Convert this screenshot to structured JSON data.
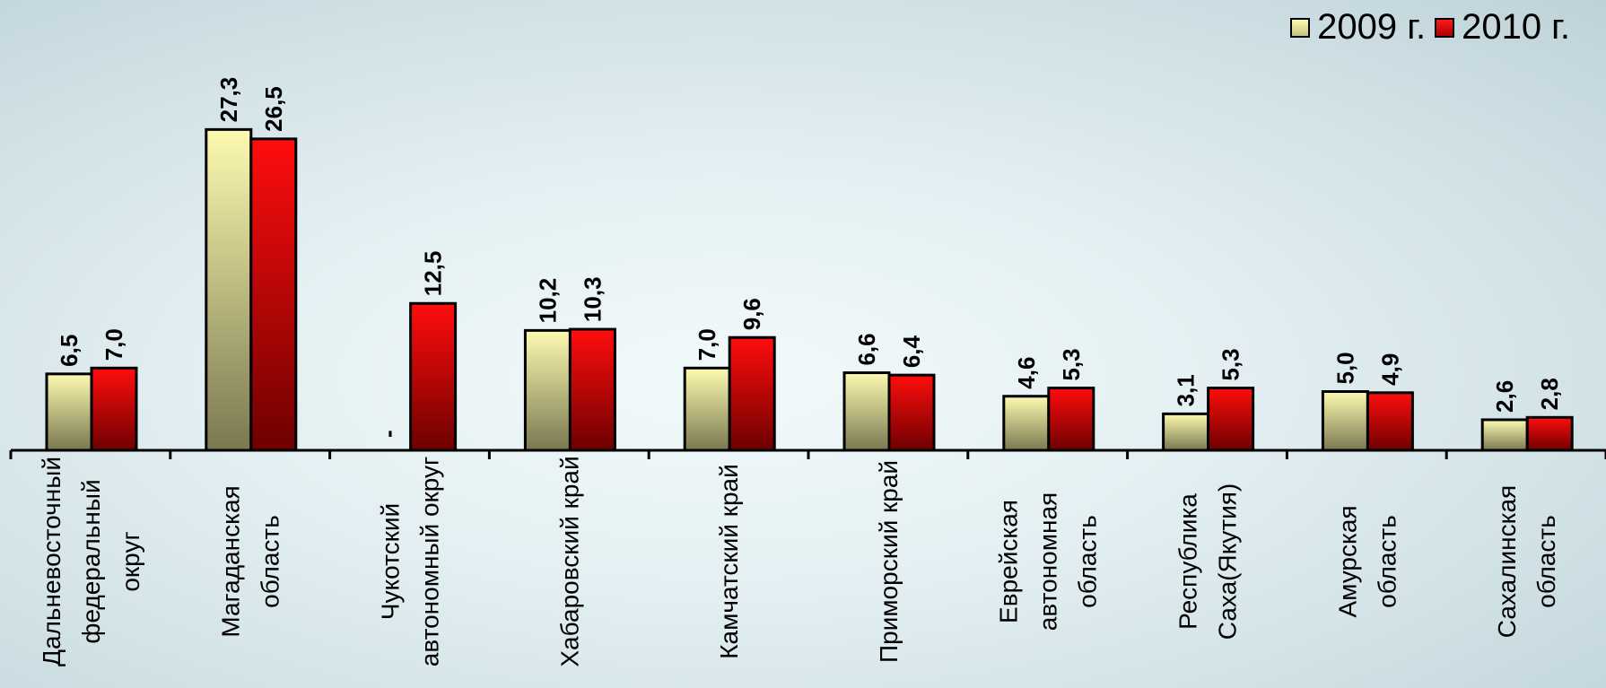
{
  "chart_data": {
    "type": "bar",
    "categories": [
      "Дальневосточный федеральный округ",
      "Магаданская область",
      "Чукотский автономный округ",
      "Хабаровский край",
      "Камчатский край",
      "Приморский край",
      "Еврейская автономная область",
      "Республика Саха(Якутия)",
      "Амурская область",
      "Сахалинская область"
    ],
    "category_lines": [
      [
        "Дальневосточный",
        "федеральный",
        "округ"
      ],
      [
        "Магаданская",
        "область"
      ],
      [
        "Чукотский",
        "автономный округ"
      ],
      [
        "Хабаровский край"
      ],
      [
        "Камчатский край"
      ],
      [
        "Приморский край"
      ],
      [
        "Еврейская",
        "автономная",
        "область"
      ],
      [
        "Республика",
        "Саха(Якутия)"
      ],
      [
        "Амурская",
        "область"
      ],
      [
        "Сахалинская",
        "область"
      ]
    ],
    "series": [
      {
        "name": "2009 г.",
        "values": [
          6.5,
          27.3,
          null,
          10.2,
          7.0,
          6.6,
          4.6,
          3.1,
          5.0,
          2.6
        ],
        "labels": [
          "6,5",
          "27,3",
          "-",
          "10,2",
          "7,0",
          "6,6",
          "4,6",
          "3,1",
          "5,0",
          "2,6"
        ],
        "color_top": "#fdfbb0",
        "color_bottom": "#7a7850"
      },
      {
        "name": "2010 г.",
        "values": [
          7.0,
          26.5,
          12.5,
          10.3,
          9.6,
          6.4,
          5.3,
          5.3,
          4.9,
          2.8
        ],
        "labels": [
          "7,0",
          "26,5",
          "12,5",
          "10,3",
          "9,6",
          "6,4",
          "5,3",
          "5,3",
          "4,9",
          "2,8"
        ],
        "color_top": "#ff0d0d",
        "color_bottom": "#6e0000"
      }
    ],
    "ylim": [
      0,
      30
    ],
    "legend_position": "top-right",
    "grid": false
  }
}
